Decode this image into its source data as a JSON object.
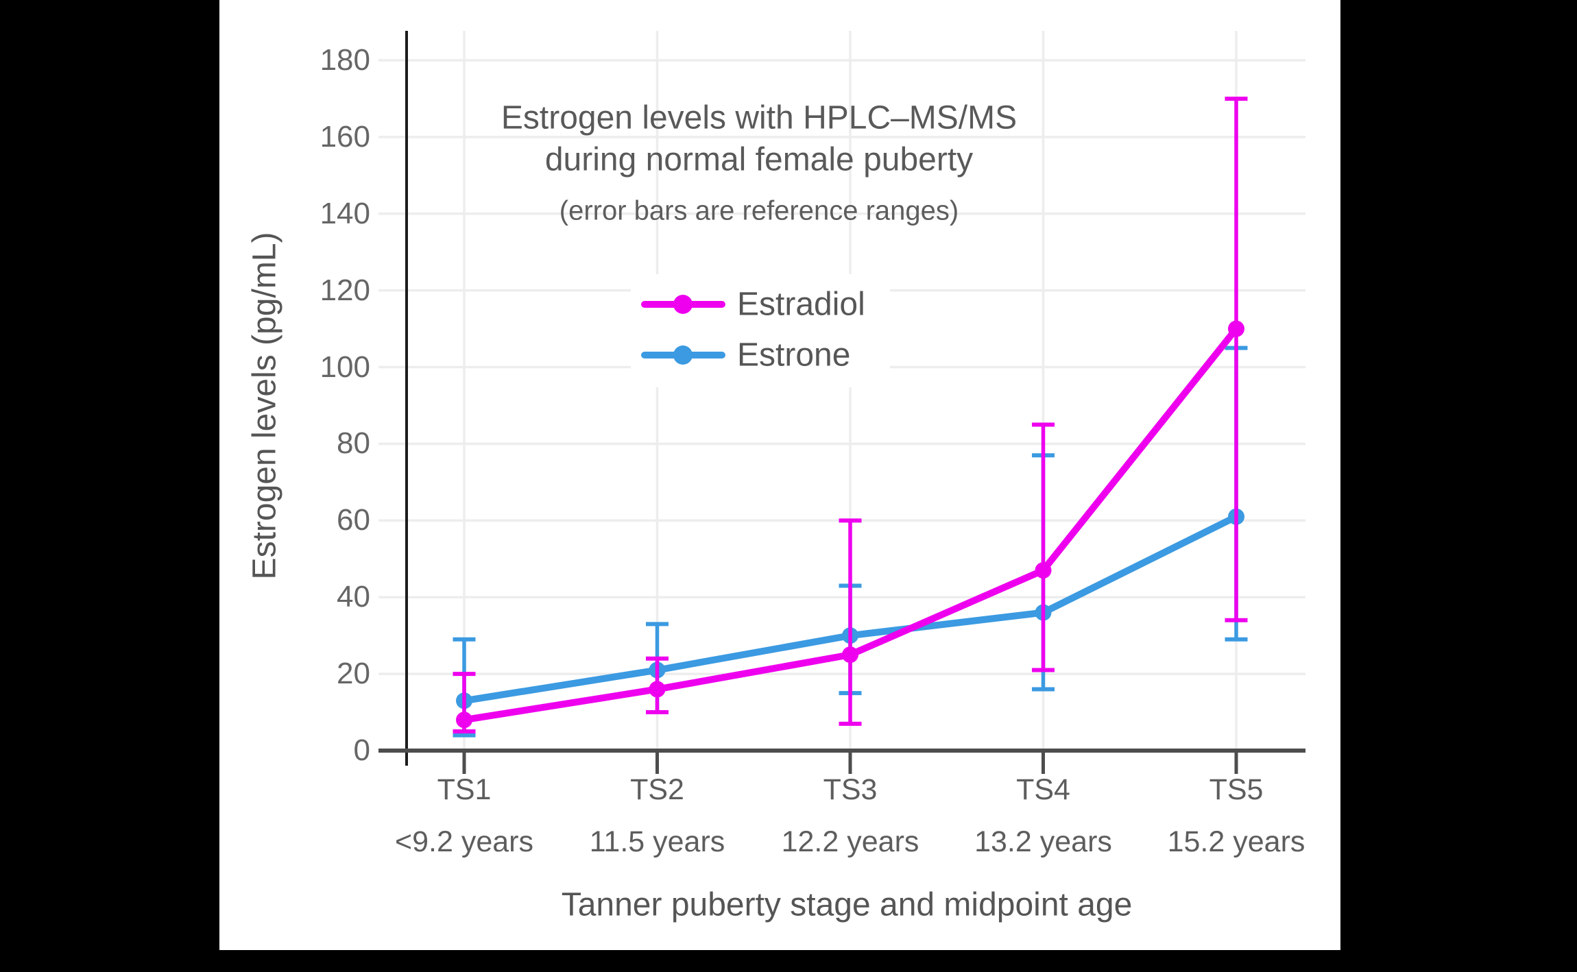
{
  "window": {
    "background_color": "#000000",
    "panel_color": "#ffffff"
  },
  "chart_data": {
    "type": "line",
    "title_line1": "Estrogen levels with HPLC–MS/MS",
    "title_line2": "during normal female puberty",
    "subtitle": "(error bars are reference ranges)",
    "xlabel": "Tanner puberty stage and midpoint age",
    "ylabel": "Estrogen levels (pg/mL)",
    "ylim": [
      0,
      180
    ],
    "yticks": [
      0,
      20,
      40,
      60,
      80,
      100,
      120,
      140,
      160,
      180
    ],
    "grid": true,
    "legend_position": "inside upper center-left",
    "error_bar_meaning": "reference ranges",
    "categories": [
      {
        "stage": "TS1",
        "age": "<9.2 years"
      },
      {
        "stage": "TS2",
        "age": "11.5 years"
      },
      {
        "stage": "TS3",
        "age": "12.2 years"
      },
      {
        "stage": "TS4",
        "age": "13.2 years"
      },
      {
        "stage": "TS5",
        "age": "15.2 years"
      }
    ],
    "series": [
      {
        "name": "Estradiol",
        "color": "#ee00ee",
        "values": [
          8,
          16,
          25,
          47,
          110
        ],
        "range_low": [
          5,
          10,
          7,
          21,
          34
        ],
        "range_high": [
          20,
          24,
          60,
          85,
          170
        ]
      },
      {
        "name": "Estrone",
        "color": "#3b9ae1",
        "values": [
          13,
          21,
          30,
          36,
          61
        ],
        "range_low": [
          4,
          10,
          15,
          16,
          29
        ],
        "range_high": [
          29,
          33,
          43,
          77,
          105
        ]
      }
    ],
    "style": {
      "grid_color": "#ededed",
      "x_axis_color": "#4d4d4d",
      "y_spine_color": "#1c1c1c",
      "tick_label_color": "#666666",
      "title_color": "#595959"
    }
  }
}
